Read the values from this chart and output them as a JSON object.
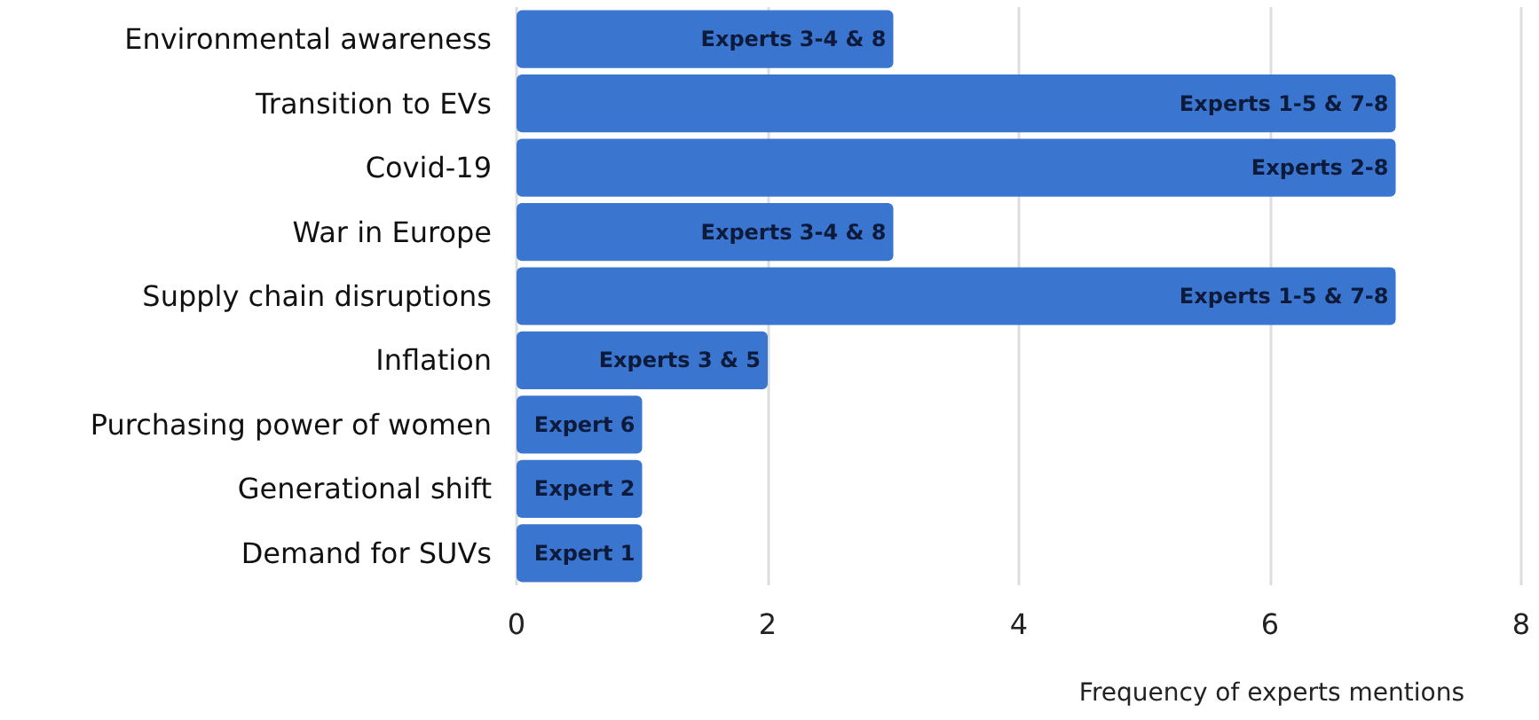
{
  "chart_data": {
    "type": "bar",
    "orientation": "horizontal",
    "xlabel": "Frequency of experts mentions",
    "categories": [
      "Environmental awareness",
      "Transition to EVs",
      "Covid-19",
      "War in Europe",
      "Supply chain disruptions",
      "Inflation",
      "Purchasing power of women",
      "Generational shift",
      "Demand for SUVs"
    ],
    "values": [
      3,
      7,
      7,
      3,
      7,
      2,
      1,
      1,
      1
    ],
    "value_labels": [
      "Experts 3-4 & 8",
      "Experts 1-5 & 7-8",
      "Experts 2-8",
      "Experts 3-4 & 8",
      "Experts 1-5 & 7-8",
      "Experts 3 & 5",
      "Expert 6",
      "Expert 2",
      "Expert 1"
    ],
    "color": "#3a76d0",
    "xlim": [
      0,
      8
    ],
    "xticks": [
      0,
      2,
      4,
      6,
      8
    ],
    "grid": "x"
  }
}
